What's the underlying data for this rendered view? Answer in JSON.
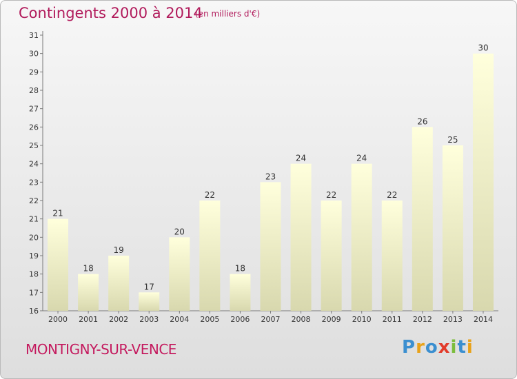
{
  "header": {
    "title": "Contingents 2000 à 2014",
    "subtitle": "(en milliers d'€)"
  },
  "footer": {
    "commune": "MONTIGNY-SUR-VENCE",
    "logo_text": "Proxiti"
  },
  "colors": {
    "title": "#b11a5b",
    "bar_top": "#ffffdc",
    "bar_bottom": "#d8d8ae"
  },
  "chart_data": {
    "type": "bar",
    "categories": [
      "2000",
      "2001",
      "2002",
      "2003",
      "2004",
      "2005",
      "2006",
      "2007",
      "2008",
      "2009",
      "2010",
      "2011",
      "2012",
      "2013",
      "2014"
    ],
    "values": [
      21,
      18,
      19,
      17,
      20,
      22,
      18,
      23,
      24,
      22,
      24,
      22,
      26,
      25,
      30
    ],
    "ylim": [
      16,
      31
    ],
    "yticks": [
      16,
      17,
      18,
      19,
      20,
      21,
      22,
      23,
      24,
      25,
      26,
      27,
      28,
      29,
      30,
      31
    ],
    "grid": false
  }
}
